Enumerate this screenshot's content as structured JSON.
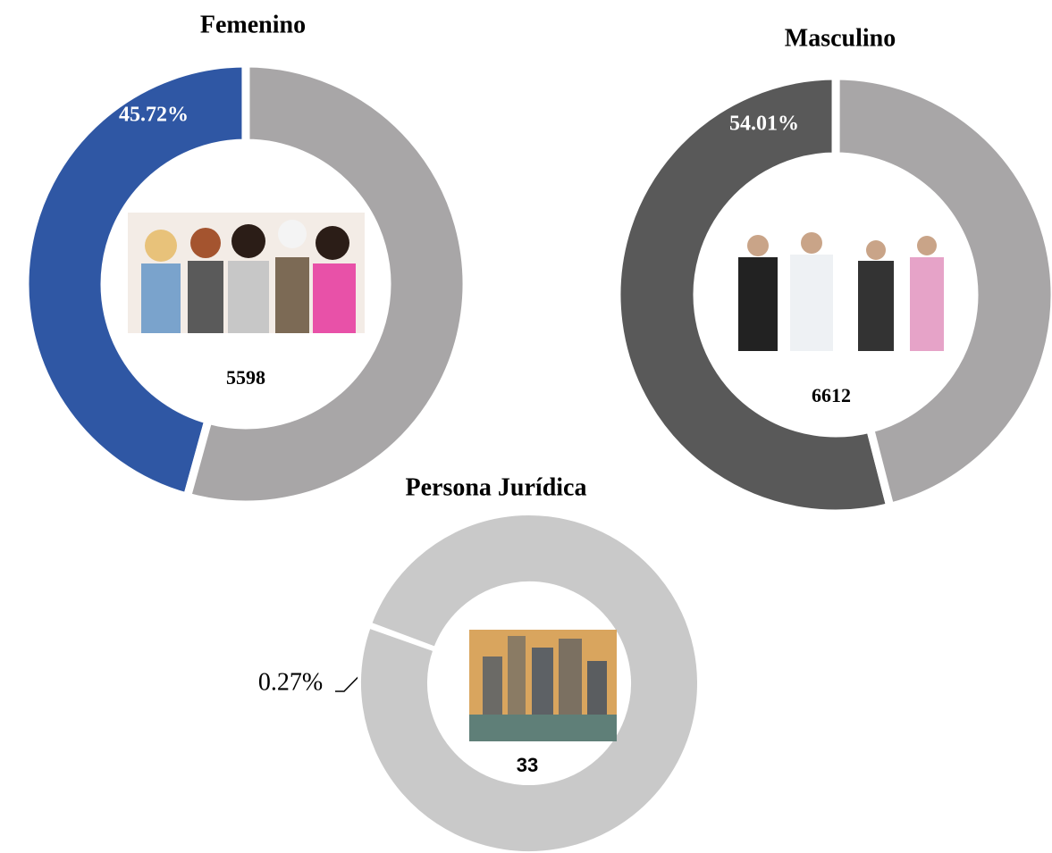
{
  "chart_data": [
    {
      "type": "donut",
      "title": "Femenino",
      "values": [
        45.72,
        54.28
      ],
      "value_labels": [
        "45.72%",
        null
      ],
      "colors": [
        "#2f57a4",
        "#a8a6a7"
      ],
      "total": 5598
    },
    {
      "type": "donut",
      "title": "Masculino",
      "values": [
        54.01,
        45.99
      ],
      "value_labels": [
        "54.01%",
        null
      ],
      "colors": [
        "#595959",
        "#a8a6a7"
      ],
      "total": 6612
    },
    {
      "type": "donut",
      "title": "Persona Jurídica",
      "values": [
        0.27,
        99.73
      ],
      "value_labels": [
        "0.27%",
        null
      ],
      "colors": [
        "#ee7a2e",
        "#c9c9c9"
      ],
      "total": 33
    }
  ]
}
